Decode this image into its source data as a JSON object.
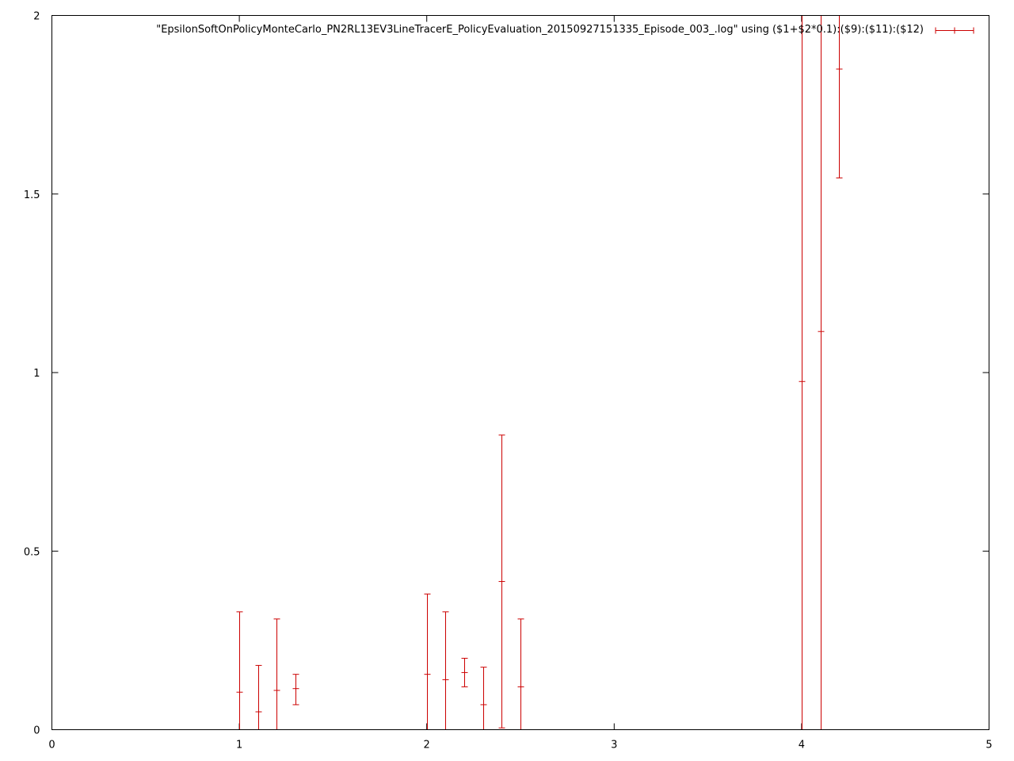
{
  "chart_data": {
    "type": "errorbar",
    "xlim": [
      0,
      5
    ],
    "ylim": [
      0,
      2
    ],
    "x_ticks": [
      0,
      1,
      2,
      3,
      4,
      5
    ],
    "y_ticks": [
      0,
      0.5,
      1,
      1.5,
      2
    ],
    "x_tick_labels": [
      "0",
      "1",
      "2",
      "3",
      "4",
      "5"
    ],
    "y_tick_labels": [
      "0",
      "0.5",
      "1",
      "1.5",
      "2"
    ],
    "grid": false,
    "legend_position": "top-right",
    "series": [
      {
        "name": "\"EpsilonSoftOnPolicyMonteCarlo_PN2RL13EV3LineTracerE_PolicyEvaluation_20150927151335_Episode_003_.log\" using ($1+$2*0.1):($9):($11):($12)",
        "color": "#cc0000",
        "points": [
          {
            "x": 1.0,
            "y": 0.105,
            "low": 0.0,
            "high": 0.33
          },
          {
            "x": 1.1,
            "y": 0.05,
            "low": 0.0,
            "high": 0.18
          },
          {
            "x": 1.2,
            "y": 0.11,
            "low": 0.0,
            "high": 0.31
          },
          {
            "x": 1.3,
            "y": 0.115,
            "low": 0.07,
            "high": 0.155
          },
          {
            "x": 2.0,
            "y": 0.155,
            "low": 0.0,
            "high": 0.38
          },
          {
            "x": 2.1,
            "y": 0.14,
            "low": 0.0,
            "high": 0.33
          },
          {
            "x": 2.2,
            "y": 0.16,
            "low": 0.12,
            "high": 0.2
          },
          {
            "x": 2.3,
            "y": 0.07,
            "low": 0.0,
            "high": 0.175
          },
          {
            "x": 2.4,
            "y": 0.415,
            "low": 0.005,
            "high": 0.825
          },
          {
            "x": 2.5,
            "y": 0.12,
            "low": 0.0,
            "high": 0.31
          },
          {
            "x": 4.0,
            "y": 0.975,
            "low": 0.0,
            "high": 2.0
          },
          {
            "x": 4.1,
            "y": 1.115,
            "low": 0.0,
            "high": 2.0
          },
          {
            "x": 4.2,
            "y": 1.85,
            "low": 1.545,
            "high": 2.0
          }
        ]
      }
    ]
  }
}
